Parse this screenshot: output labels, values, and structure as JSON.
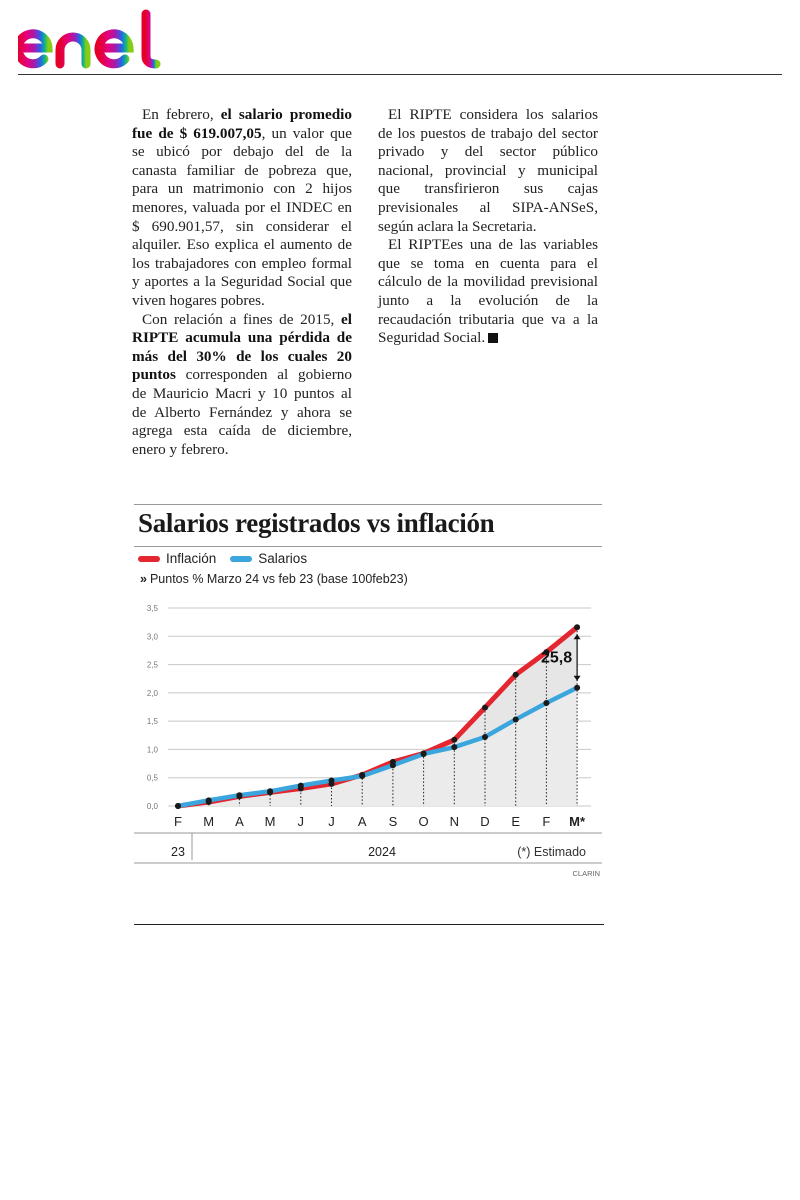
{
  "brand": {
    "name": "enel"
  },
  "article": {
    "left_paragraphs": [
      [
        {
          "t": "En febrero, ",
          "b": false
        },
        {
          "t": "el salario promedio fue de $ 619.007,05",
          "b": true
        },
        {
          "t": ", un valor que se ubicó por debajo del de la canasta familiar de pobreza que, para un matrimonio con 2 hijos menores, valuada por el INDEC en $ 690.901,57, sin considerar el alquiler. Eso explica el aumento de los trabajadores con empleo formal y aportes a la Seguridad Social que viven hogares pobres.",
          "b": false
        }
      ],
      [
        {
          "t": "Con relación a fines de 2015, ",
          "b": false
        },
        {
          "t": "el RIPTE acumula una pérdida de más del 30% de los cuales 20 puntos",
          "b": true
        },
        {
          "t": " corresponden al gobierno de Mauricio Macri y 10 puntos al de Alberto Fernández y ahora se agrega esta caída de diciembre, enero y febrero.",
          "b": false
        }
      ]
    ],
    "right_paragraphs": [
      [
        {
          "t": "El RIPTE considera los salarios de los puestos de trabajo del sector privado y del sector público nacional, provincial y municipal que transfirieron sus cajas previsionales al SIPA-ANSeS, según aclara la Secretaria.",
          "b": false
        }
      ],
      [
        {
          "t": "El RIPTEes una de las variables que se toma en cuenta para el cálculo de la movilidad previsional junto a la evolución de la recaudación tributaria que va a la Seguridad Social.",
          "b": false
        }
      ]
    ]
  },
  "chart_data": {
    "type": "line",
    "title": "Salarios registrados vs inflación",
    "subtitle_marker": "»",
    "subtitle": "Puntos % Marzo 24 vs feb 23 (base 100feb23)",
    "categories": [
      "F",
      "M",
      "A",
      "M",
      "J",
      "J",
      "A",
      "S",
      "O",
      "N",
      "D",
      "E",
      "F",
      "M*"
    ],
    "year_labels": {
      "start": "23",
      "middle": "2024"
    },
    "footnote": "(*) Estimado",
    "source": "CLARIN",
    "annotation": "25,8",
    "ylim": [
      0,
      3.5
    ],
    "yticks": [
      "0,0",
      "0,5",
      "1,0",
      "1,5",
      "2,0",
      "2,5",
      "3,0",
      "3,5"
    ],
    "grid": true,
    "series": [
      {
        "name": "Inflación",
        "color": "#e3262f",
        "values": [
          0.0,
          0.07,
          0.17,
          0.24,
          0.31,
          0.39,
          0.55,
          0.78,
          0.93,
          1.17,
          1.74,
          2.32,
          2.72,
          3.16
        ]
      },
      {
        "name": "Salarios",
        "color": "#3aa6dd",
        "values": [
          0.0,
          0.1,
          0.19,
          0.26,
          0.36,
          0.45,
          0.53,
          0.72,
          0.92,
          1.04,
          1.22,
          1.53,
          1.82,
          2.09
        ]
      }
    ]
  }
}
